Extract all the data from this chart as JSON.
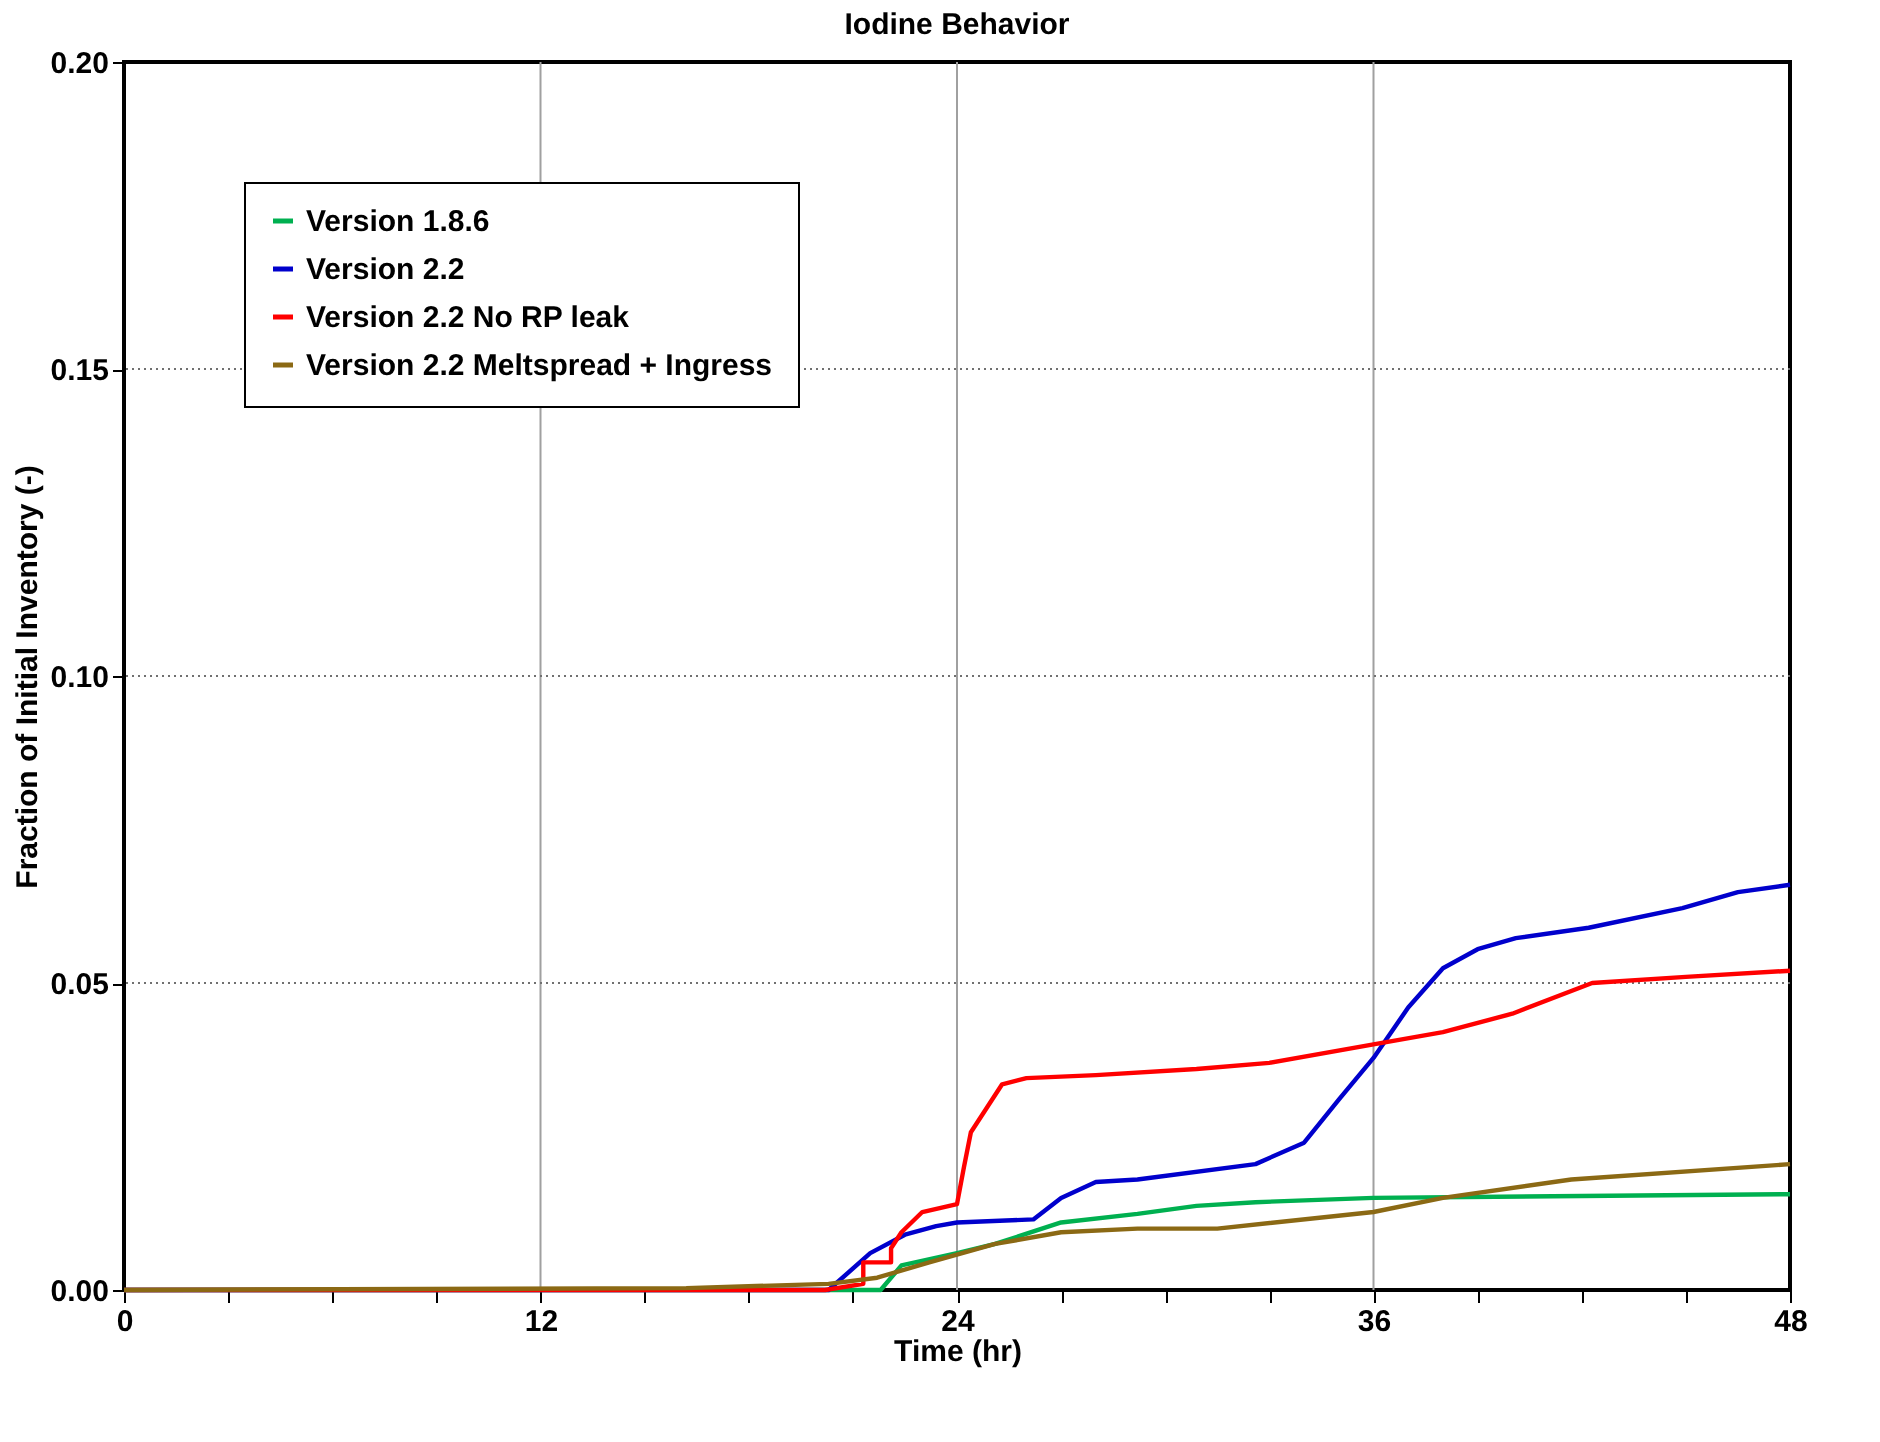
{
  "chart_data": {
    "type": "line",
    "title": "Iodine Behavior",
    "xlabel": "Time (hr)",
    "ylabel": "Fraction of Initial Inventory (-)",
    "xlim": [
      0,
      48
    ],
    "ylim": [
      0,
      0.2
    ],
    "xticks": [
      0,
      {
        "value": 3,
        "label": null
      },
      {
        "value": 6,
        "label": null
      },
      {
        "value": 9,
        "label": null
      },
      12,
      {
        "value": 15,
        "label": null
      },
      {
        "value": 18,
        "label": null
      },
      {
        "value": 21,
        "label": null
      },
      24,
      {
        "value": 27,
        "label": null
      },
      {
        "value": 30,
        "label": null
      },
      {
        "value": 33,
        "label": null
      },
      36,
      {
        "value": 39,
        "label": null
      },
      {
        "value": 42,
        "label": null
      },
      {
        "value": 45,
        "label": null
      },
      48
    ],
    "yticks": [
      {
        "value": 0,
        "label": "0.00"
      },
      {
        "value": 0.05,
        "label": "0.05"
      },
      {
        "value": 0.1,
        "label": "0.10"
      },
      {
        "value": 0.15,
        "label": "0.15"
      },
      {
        "value": 0.2,
        "label": "0.20"
      }
    ],
    "grid": true,
    "legend": "top left",
    "marker": "none",
    "line_style": "solid",
    "series": [
      {
        "name": "Version 1.8.6",
        "color": "#00b050",
        "x": [
          0,
          21.8,
          22.4,
          24,
          25.1,
          27,
          29.2,
          30.9,
          32.6,
          36,
          42,
          48
        ],
        "values": [
          0,
          0,
          0.004,
          0.006,
          0.0075,
          0.011,
          0.0124,
          0.0137,
          0.0143,
          0.015,
          0.0153,
          0.0156
        ]
      },
      {
        "name": "Version 2.2",
        "color": "#0000cc",
        "x": [
          0,
          20.3,
          21.5,
          22.5,
          23.4,
          24,
          26.2,
          27,
          28,
          29.2,
          32.6,
          34,
          35,
          36,
          37,
          38,
          39,
          40.1,
          42.2,
          44.9,
          46.5,
          48
        ],
        "values": [
          0,
          0,
          0.006,
          0.009,
          0.0104,
          0.011,
          0.0115,
          0.015,
          0.0176,
          0.018,
          0.0205,
          0.024,
          0.031,
          0.0378,
          0.046,
          0.0524,
          0.0555,
          0.0573,
          0.059,
          0.0622,
          0.0648,
          0.066
        ]
      },
      {
        "name": "Version 2.2 No RP leak",
        "color": "#ff0000",
        "x": [
          0,
          20.2,
          21.3,
          21.3,
          22.1,
          22.1,
          22.4,
          23.0,
          24.0,
          24.2,
          24.4,
          25.3,
          26,
          28,
          30.9,
          33,
          36,
          38,
          40,
          42.3,
          45,
          48
        ],
        "values": [
          0,
          0,
          0.001,
          0.0045,
          0.0045,
          0.0068,
          0.0094,
          0.0127,
          0.014,
          0.02,
          0.0257,
          0.0335,
          0.0345,
          0.035,
          0.036,
          0.037,
          0.04,
          0.042,
          0.045,
          0.05,
          0.051,
          0.052
        ]
      },
      {
        "name": "Version 2.2 Meltspread + Ingress",
        "color": "#8b6914",
        "x": [
          0,
          16.2,
          20.3,
          21.7,
          23.2,
          25.1,
          27,
          29.2,
          31.5,
          36,
          38,
          41.7,
          48
        ],
        "values": [
          0,
          0.0003,
          0.001,
          0.002,
          0.0045,
          0.0075,
          0.0094,
          0.01,
          0.01,
          0.0127,
          0.015,
          0.018,
          0.0205
        ]
      }
    ]
  }
}
